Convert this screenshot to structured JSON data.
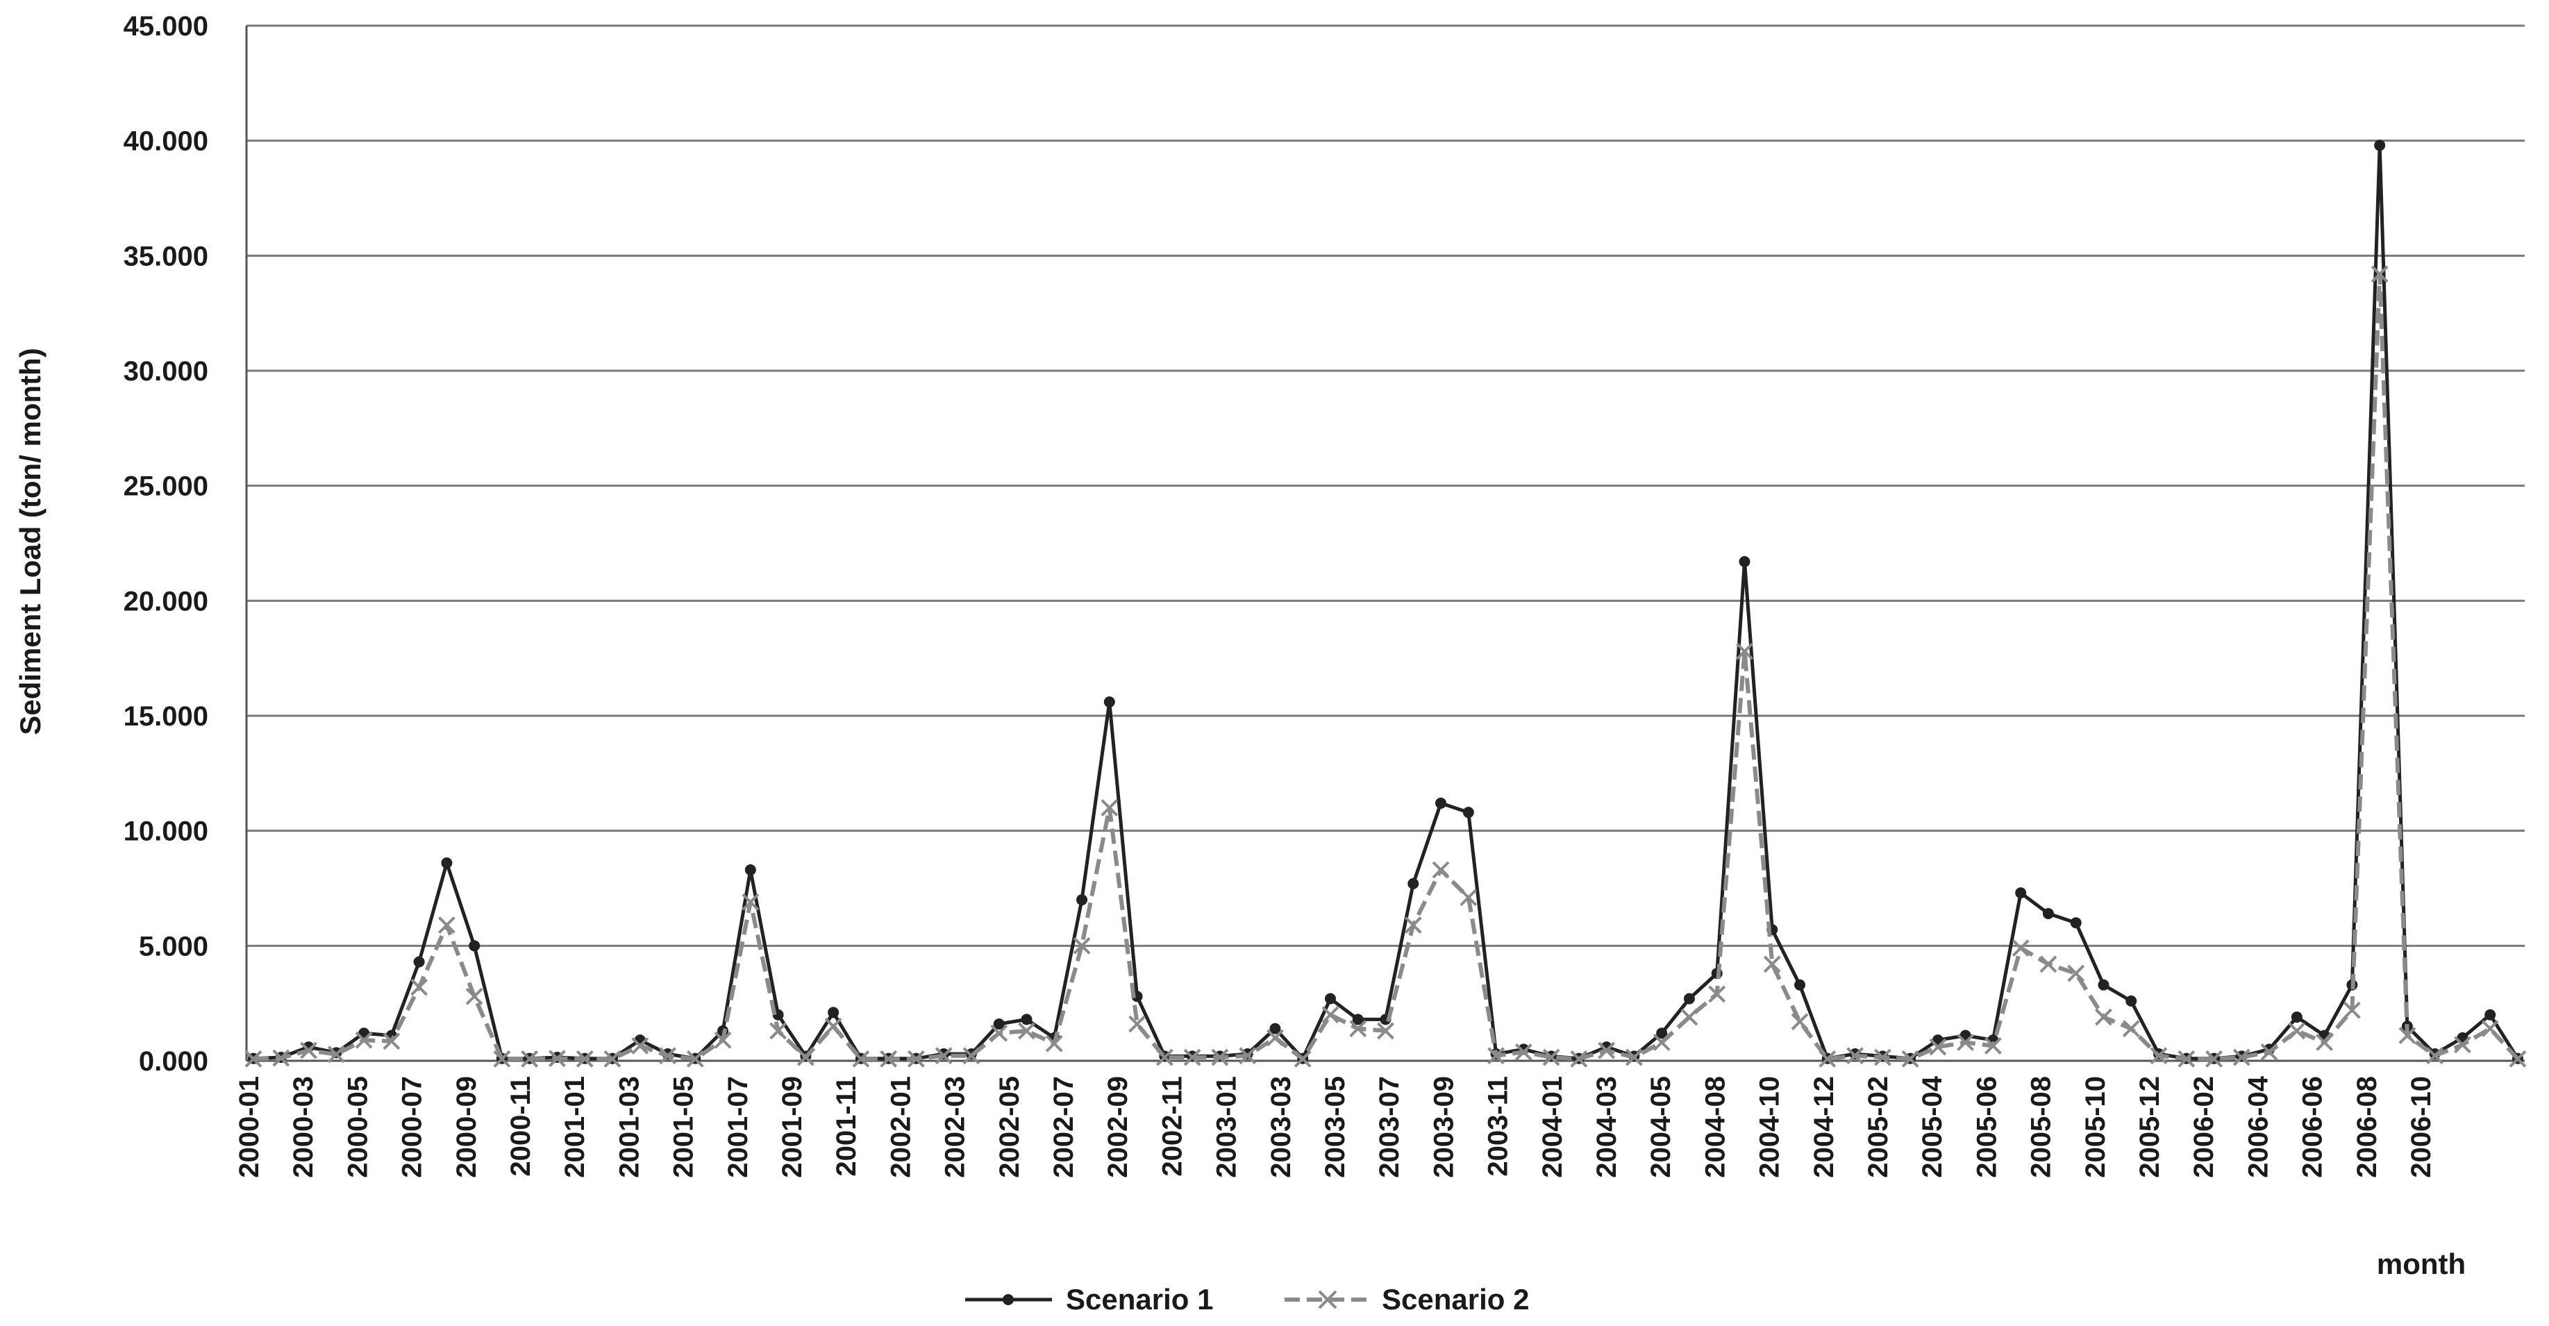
{
  "chart_data": {
    "type": "line",
    "xlabel": "month",
    "ylabel": "Sediment Load (ton/ month)",
    "ylim": [
      0,
      45000
    ],
    "ytick_values": [
      0,
      5000,
      10000,
      15000,
      20000,
      25000,
      30000,
      35000,
      40000,
      45000
    ],
    "ytick_labels": [
      "0.000",
      "5.000",
      "10.000",
      "15.000",
      "20.000",
      "25.000",
      "30.000",
      "35.000",
      "40.000",
      "45.000"
    ],
    "categories": [
      "2000-01",
      "2000-02",
      "2000-03",
      "2000-04",
      "2000-05",
      "2000-06",
      "2000-07",
      "2000-08",
      "2000-09",
      "2000-10",
      "2000-11",
      "2000-12",
      "2001-01",
      "2001-02",
      "2001-03",
      "2001-04",
      "2001-05",
      "2001-06",
      "2001-07",
      "2001-08",
      "2001-09",
      "2001-10",
      "2001-11",
      "2001-12",
      "2002-01",
      "2002-02",
      "2002-03",
      "2002-04",
      "2002-05",
      "2002-06",
      "2002-07",
      "2002-08",
      "2002-09",
      "2002-10",
      "2002-11",
      "2002-12",
      "2003-01",
      "2003-02",
      "2003-03",
      "2003-04",
      "2003-05",
      "2003-06",
      "2003-07",
      "2003-08",
      "2003-09",
      "2003-10",
      "2003-11",
      "2003-12",
      "2004-01",
      "2004-02",
      "2004-03",
      "2004-04",
      "2004-05",
      "2004-06",
      "2004-08",
      "2004-09",
      "2004-10",
      "2004-11",
      "2004-12",
      "2005-01",
      "2005-02",
      "2005-03",
      "2005-04",
      "2005-05",
      "2005-06",
      "2005-07",
      "2005-08",
      "2005-09",
      "2005-10",
      "2005-11",
      "2005-12",
      "2006-01",
      "2006-02",
      "2006-03",
      "2006-04",
      "2006-05",
      "2006-06",
      "2006-07",
      "2006-08",
      "2006-09",
      "2006-10",
      "2006-11",
      "2006-12"
    ],
    "tick_labels": [
      "2000-01",
      "2000-03",
      "2000-05",
      "2000-07",
      "2000-09",
      "2000-11",
      "2001-01",
      "2001-03",
      "2001-05",
      "2001-07",
      "2001-09",
      "2001-11",
      "2002-01",
      "2002-03",
      "2002-05",
      "2002-07",
      "2002-09",
      "2002-11",
      "2003-01",
      "2003-03",
      "2003-05",
      "2003-07",
      "2003-09",
      "2003-11",
      "2004-01",
      "2004-03",
      "2004-05",
      "2004-08",
      "2004-10",
      "2004-12",
      "2005-02",
      "2005-04",
      "2005-06",
      "2005-08",
      "2005-10",
      "2005-12",
      "2006-02",
      "2006-04",
      "2006-06",
      "2006-08",
      "2006-10"
    ],
    "series": [
      {
        "name": "Scenario 1",
        "color": "#222222",
        "values": [
          100,
          150,
          600,
          350,
          1200,
          1100,
          4300,
          8600,
          5000,
          100,
          100,
          150,
          100,
          100,
          900,
          300,
          100,
          1300,
          8300,
          2000,
          200,
          2100,
          100,
          100,
          100,
          300,
          300,
          1600,
          1800,
          1000,
          7000,
          15600,
          2800,
          200,
          200,
          200,
          300,
          1400,
          100,
          2700,
          1800,
          1800,
          7700,
          11200,
          10800,
          300,
          500,
          200,
          100,
          600,
          200,
          1200,
          2700,
          3800,
          21700,
          5700,
          3300,
          100,
          300,
          200,
          100,
          900,
          1100,
          900,
          7300,
          6400,
          6000,
          3300,
          2600,
          300,
          100,
          100,
          200,
          500,
          1900,
          1100,
          3300,
          39800,
          1500,
          300,
          1000,
          2000,
          100
        ]
      },
      {
        "name": "Scenario 2",
        "color": "#8a8a8a",
        "values": [
          80,
          120,
          450,
          280,
          900,
          850,
          3200,
          5900,
          2800,
          80,
          80,
          100,
          80,
          80,
          650,
          220,
          80,
          900,
          6900,
          1300,
          150,
          1500,
          80,
          80,
          80,
          220,
          220,
          1200,
          1300,
          750,
          5000,
          11000,
          1600,
          150,
          150,
          150,
          220,
          1000,
          80,
          2000,
          1400,
          1300,
          5900,
          8300,
          7100,
          220,
          380,
          150,
          80,
          450,
          150,
          800,
          1900,
          2900,
          17800,
          4200,
          1700,
          80,
          220,
          150,
          80,
          600,
          800,
          650,
          4900,
          4200,
          3800,
          1900,
          1400,
          220,
          80,
          80,
          150,
          380,
          1300,
          800,
          2200,
          34200,
          1100,
          220,
          700,
          1400,
          80
        ]
      }
    ],
    "legend": {
      "position": "bottom",
      "items": [
        "Scenario 1",
        "Scenario 2"
      ]
    },
    "grid": {
      "y": true,
      "x": false
    }
  }
}
